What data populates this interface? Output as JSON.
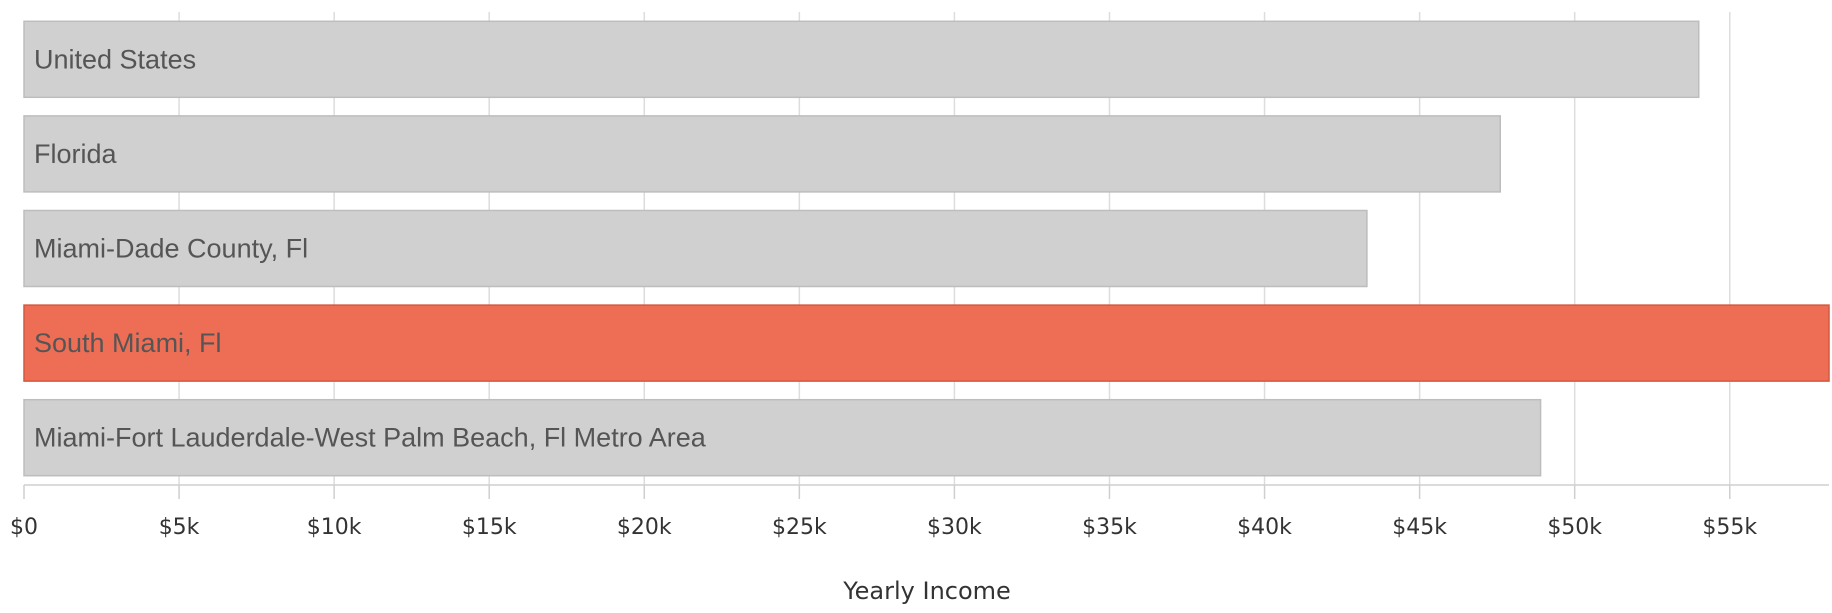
{
  "chart_data": {
    "type": "bar",
    "orientation": "horizontal",
    "xlabel": "Yearly Income",
    "xlim": [
      0,
      58200
    ],
    "x_ticks": [
      0,
      5000,
      10000,
      15000,
      20000,
      25000,
      30000,
      35000,
      40000,
      45000,
      50000,
      55000
    ],
    "x_tick_labels": [
      "$0",
      "$5k",
      "$10k",
      "$15k",
      "$20k",
      "$25k",
      "$30k",
      "$35k",
      "$40k",
      "$45k",
      "$50k",
      "$55k"
    ],
    "categories": [
      "United States",
      "Florida",
      "Miami-Dade County, Fl",
      "South Miami, Fl",
      "Miami-Fort Lauderdale-West Palm Beach, Fl Metro Area"
    ],
    "values": [
      54000,
      47600,
      43300,
      58200,
      48900
    ],
    "highlight_index": 3,
    "grid": true,
    "colors": {
      "bar": "#d0d0d0",
      "bar_stroke": "#bdbdbd",
      "highlight": "#ee6e55",
      "highlight_stroke": "#d4583f",
      "grid": "#dddddd",
      "axis": "#cfcfcf"
    }
  }
}
